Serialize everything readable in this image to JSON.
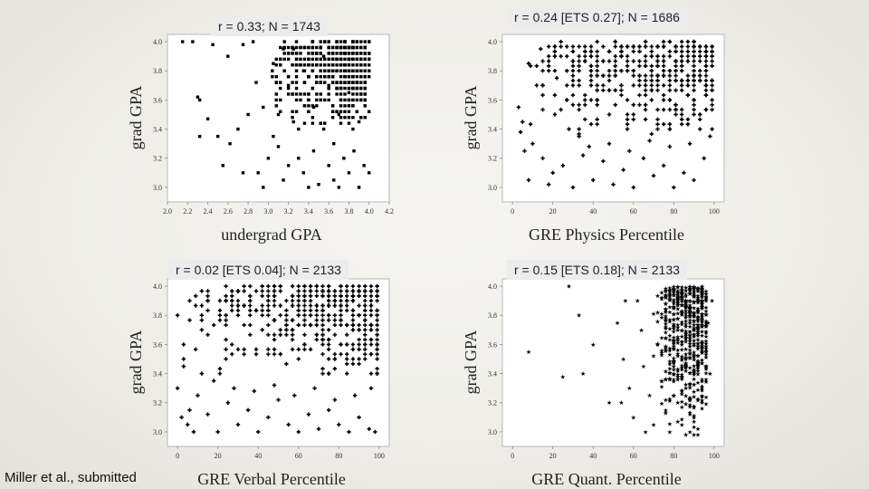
{
  "chart_data": [
    {
      "type": "scatter",
      "stat_label": "r = 0.33; N = 1743",
      "xlabel": "undergrad GPA",
      "ylabel": "grad GPA",
      "xlim": [
        2.0,
        4.2
      ],
      "ylim": [
        2.9,
        4.05
      ],
      "xticks": [
        "2.0",
        "2.2",
        "2.4",
        "2.6",
        "2.8",
        "3.0",
        "3.2",
        "3.4",
        "3.6",
        "3.8",
        "4.0",
        "4.2"
      ],
      "yticks": [
        "3.0",
        "3.2",
        "3.4",
        "3.6",
        "3.8",
        "4.0"
      ],
      "marker": "square",
      "points": [
        [
          2.15,
          4.0
        ],
        [
          2.25,
          4.0
        ],
        [
          2.45,
          3.98
        ],
        [
          2.6,
          3.9
        ],
        [
          2.75,
          3.98
        ],
        [
          2.85,
          4.0
        ],
        [
          2.3,
          3.62
        ],
        [
          2.32,
          3.6
        ],
        [
          2.4,
          3.47
        ],
        [
          2.32,
          3.35
        ],
        [
          2.5,
          3.35
        ],
        [
          2.62,
          3.3
        ],
        [
          2.7,
          3.4
        ],
        [
          2.8,
          3.5
        ],
        [
          2.88,
          3.72
        ],
        [
          2.95,
          3.55
        ],
        [
          3.0,
          3.2
        ],
        [
          2.9,
          3.1
        ],
        [
          2.95,
          3.0
        ],
        [
          2.75,
          3.1
        ],
        [
          2.55,
          3.15
        ],
        [
          3.05,
          3.85
        ],
        [
          3.1,
          3.5
        ],
        [
          3.1,
          3.28
        ],
        [
          3.15,
          3.05
        ],
        [
          3.2,
          3.7
        ],
        [
          3.2,
          3.15
        ],
        [
          3.25,
          3.95
        ],
        [
          3.3,
          3.4
        ],
        [
          3.3,
          3.2
        ],
        [
          3.35,
          3.8
        ],
        [
          3.35,
          3.1
        ],
        [
          3.4,
          3.6
        ],
        [
          3.45,
          3.25
        ],
        [
          3.5,
          3.02
        ],
        [
          3.55,
          3.4
        ],
        [
          3.6,
          3.7
        ],
        [
          3.6,
          3.15
        ],
        [
          3.65,
          3.3
        ],
        [
          3.7,
          3.0
        ],
        [
          3.75,
          3.2
        ],
        [
          3.8,
          3.1
        ],
        [
          3.85,
          3.25
        ],
        [
          3.9,
          3.0
        ],
        [
          3.95,
          3.15
        ],
        [
          4.0,
          3.1
        ],
        [
          3.25,
          3.45
        ],
        [
          3.45,
          3.55
        ],
        [
          3.55,
          3.9
        ],
        [
          3.7,
          3.5
        ],
        [
          3.8,
          3.65
        ],
        [
          3.9,
          3.45
        ],
        [
          3.05,
          3.35
        ],
        [
          3.15,
          3.95
        ],
        [
          3.4,
          3.0
        ],
        [
          3.65,
          3.05
        ]
      ],
      "dense_region": {
        "x": [
          3.0,
          4.0
        ],
        "y": [
          3.4,
          4.0
        ]
      }
    },
    {
      "type": "scatter",
      "stat_label": "r = 0.24 [ETS 0.27]; N = 1686",
      "xlabel": "GRE Physics Percentile",
      "ylabel": "grad GPA",
      "xlim": [
        -5,
        105
      ],
      "ylim": [
        2.9,
        4.05
      ],
      "xticks": [
        "0",
        "20",
        "40",
        "60",
        "80",
        "100"
      ],
      "yticks": [
        "3.0",
        "3.2",
        "3.4",
        "3.6",
        "3.8",
        "4.0"
      ],
      "marker": "plus",
      "points": [
        [
          3,
          3.55
        ],
        [
          5,
          3.45
        ],
        [
          4,
          3.38
        ],
        [
          6,
          3.25
        ],
        [
          10,
          3.3
        ],
        [
          15,
          3.2
        ],
        [
          20,
          3.1
        ],
        [
          8,
          3.05
        ],
        [
          18,
          3.02
        ],
        [
          25,
          3.15
        ],
        [
          30,
          3.0
        ],
        [
          35,
          3.22
        ],
        [
          40,
          3.05
        ],
        [
          45,
          3.18
        ],
        [
          50,
          3.02
        ],
        [
          55,
          3.12
        ],
        [
          60,
          3.0
        ],
        [
          65,
          3.2
        ],
        [
          70,
          3.08
        ],
        [
          75,
          3.15
        ],
        [
          80,
          3.0
        ],
        [
          85,
          3.1
        ],
        [
          90,
          3.05
        ],
        [
          95,
          3.2
        ],
        [
          12,
          3.7
        ],
        [
          22,
          3.75
        ],
        [
          14,
          3.95
        ],
        [
          8,
          3.85
        ],
        [
          28,
          3.4
        ],
        [
          33,
          3.35
        ],
        [
          38,
          3.28
        ],
        [
          48,
          3.3
        ],
        [
          58,
          3.25
        ],
        [
          68,
          3.32
        ],
        [
          78,
          3.28
        ],
        [
          88,
          3.3
        ],
        [
          98,
          3.35
        ]
      ],
      "dense_region": {
        "x": [
          5,
          100
        ],
        "y": [
          3.35,
          4.0
        ]
      }
    },
    {
      "type": "scatter",
      "stat_label": "r = 0.02 [ETS 0.04]; N = 2133",
      "xlabel": "GRE Verbal Percentile",
      "ylabel": "grad GPA",
      "xlim": [
        -5,
        105
      ],
      "ylim": [
        2.9,
        4.05
      ],
      "xticks": [
        "0",
        "20",
        "40",
        "60",
        "80",
        "100"
      ],
      "yticks": [
        "3.0",
        "3.2",
        "3.4",
        "3.6",
        "3.8",
        "4.0"
      ],
      "marker": "plus",
      "points": [
        [
          0,
          3.3
        ],
        [
          2,
          3.1
        ],
        [
          5,
          3.05
        ],
        [
          8,
          3.0
        ],
        [
          6,
          3.15
        ],
        [
          10,
          3.25
        ],
        [
          15,
          3.12
        ],
        [
          20,
          3.0
        ],
        [
          25,
          3.2
        ],
        [
          30,
          3.05
        ],
        [
          35,
          3.15
        ],
        [
          40,
          3.0
        ],
        [
          45,
          3.1
        ],
        [
          50,
          3.22
        ],
        [
          55,
          3.05
        ],
        [
          60,
          3.0
        ],
        [
          65,
          3.12
        ],
        [
          70,
          3.02
        ],
        [
          75,
          3.15
        ],
        [
          80,
          3.05
        ],
        [
          85,
          3.0
        ],
        [
          90,
          3.1
        ],
        [
          95,
          3.02
        ],
        [
          98,
          3.0
        ],
        [
          3,
          3.45
        ],
        [
          12,
          3.4
        ],
        [
          18,
          3.35
        ],
        [
          28,
          3.3
        ],
        [
          38,
          3.28
        ],
        [
          48,
          3.32
        ],
        [
          58,
          3.25
        ],
        [
          68,
          3.3
        ],
        [
          78,
          3.22
        ],
        [
          88,
          3.25
        ],
        [
          96,
          3.3
        ]
      ],
      "dense_region": {
        "x": [
          0,
          100
        ],
        "y": [
          3.35,
          4.0
        ]
      }
    },
    {
      "type": "scatter",
      "stat_label": "r = 0.15 [ETS 0.18]; N = 2133",
      "xlabel": "GRE Quant. Percentile",
      "ylabel": "grad GPA",
      "xlim": [
        -5,
        105
      ],
      "ylim": [
        2.9,
        4.05
      ],
      "xticks": [
        "0",
        "20",
        "40",
        "60",
        "80",
        "100"
      ],
      "yticks": [
        "3.0",
        "3.2",
        "3.4",
        "3.6",
        "3.8",
        "4.0"
      ],
      "marker": "star",
      "points": [
        [
          8,
          3.55
        ],
        [
          25,
          3.38
        ],
        [
          28,
          4.0
        ],
        [
          33,
          3.8
        ],
        [
          35,
          3.4
        ],
        [
          40,
          3.6
        ],
        [
          48,
          3.2
        ],
        [
          52,
          3.75
        ],
        [
          55,
          3.5
        ],
        [
          58,
          3.3
        ],
        [
          60,
          3.1
        ],
        [
          62,
          3.9
        ],
        [
          65,
          3.45
        ],
        [
          68,
          3.25
        ],
        [
          70,
          3.05
        ],
        [
          72,
          3.6
        ],
        [
          74,
          3.35
        ],
        [
          76,
          3.15
        ],
        [
          78,
          3.0
        ],
        [
          80,
          3.45
        ],
        [
          82,
          3.2
        ],
        [
          84,
          3.05
        ],
        [
          86,
          3.3
        ],
        [
          88,
          3.0
        ],
        [
          90,
          3.1
        ],
        [
          92,
          3.02
        ],
        [
          94,
          3.2
        ],
        [
          96,
          3.55
        ],
        [
          98,
          3.4
        ],
        [
          66,
          3.0
        ],
        [
          64,
          3.7
        ],
        [
          56,
          3.9
        ],
        [
          54,
          3.2
        ],
        [
          97,
          3.75
        ],
        [
          99,
          3.9
        ],
        [
          90,
          2.98
        ],
        [
          86,
          2.98
        ],
        [
          92,
          2.98
        ]
      ],
      "dense_region": {
        "x": [
          70,
          96
        ],
        "y": [
          3.0,
          4.0
        ]
      }
    }
  ],
  "credit": "Miller et al., submitted"
}
